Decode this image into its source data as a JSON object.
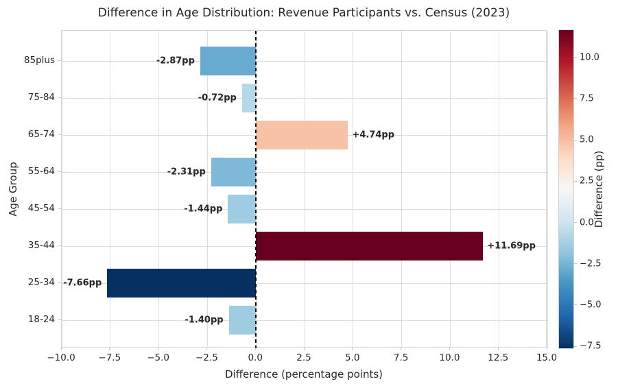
{
  "chart_data": {
    "type": "bar",
    "orientation": "horizontal",
    "title": "Difference in Age Distribution: Revenue Participants vs. Census (2023)",
    "xlabel": "Difference (percentage points)",
    "ylabel": "Age Group",
    "categories": [
      "85plus",
      "75-84",
      "65-74",
      "55-64",
      "45-54",
      "35-44",
      "25-34",
      "18-24"
    ],
    "values": [
      -2.87,
      -0.72,
      4.74,
      -2.31,
      -1.44,
      11.69,
      -7.66,
      -1.4
    ],
    "value_labels": [
      "-2.87pp",
      "-0.72pp",
      "+4.74pp",
      "-2.31pp",
      "-1.44pp",
      "+11.69pp",
      "-7.66pp",
      "-1.40pp"
    ],
    "bar_colors": [
      "#69abd0",
      "#b7d8e9",
      "#f8c2a7",
      "#7fb9d8",
      "#9fcce2",
      "#67001f",
      "#053061",
      "#a0cce2"
    ],
    "xlim": [
      -10.0,
      15.0
    ],
    "xtick_values": [
      -10,
      -7.5,
      -5,
      -2.5,
      0,
      2.5,
      5,
      7.5,
      10,
      12.5,
      15
    ],
    "xtick_labels": [
      "−10.0",
      "−7.5",
      "−5.0",
      "−2.5",
      "0.0",
      "2.5",
      "5.0",
      "7.5",
      "10.0",
      "12.5",
      "15.0"
    ],
    "zero_line_value": 0,
    "grid": true,
    "legend_position": "none"
  },
  "colorbar": {
    "label": "Difference (pp)",
    "min": -7.66,
    "max": 11.69,
    "tick_values": [
      10,
      7.5,
      5,
      2.5,
      0,
      -2.5,
      -5,
      -7.5
    ],
    "tick_labels": [
      "10.0",
      "7.5",
      "5.0",
      "2.5",
      "0.0",
      "−2.5",
      "−5.0",
      "−7.5"
    ],
    "gradient_top_to_bottom": [
      "#67001f",
      "#b2182b",
      "#d6604d",
      "#f4a582",
      "#fddbc7",
      "#f7f7f7",
      "#d1e5f0",
      "#92c5de",
      "#4393c3",
      "#2166ac",
      "#053061"
    ]
  },
  "colors": {
    "figure_background": "#ffffff",
    "plot_background": "#ffffff",
    "grid": "#dedede",
    "spine": "#d4d4d4",
    "text": "#262626",
    "zero_line": "#000000",
    "negative_extreme": "#053061",
    "positive_extreme": "#67001f"
  }
}
